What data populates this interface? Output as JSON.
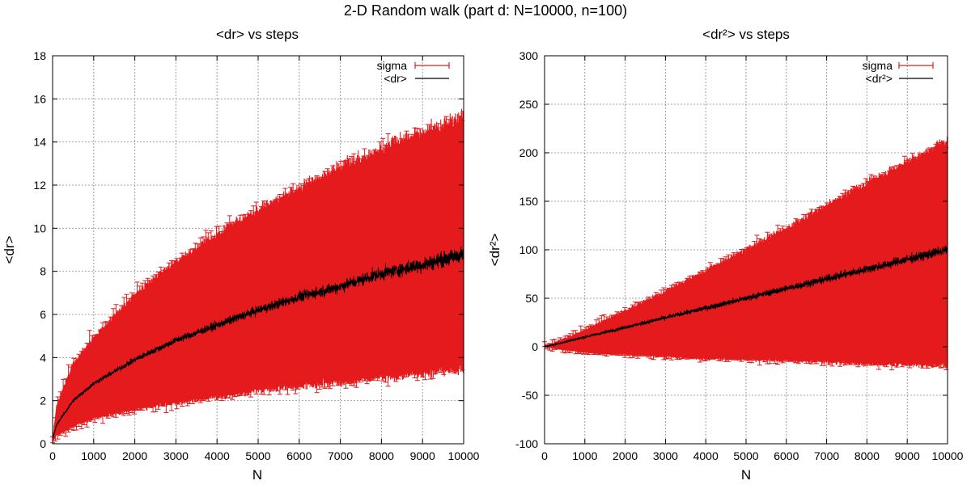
{
  "figure_title": "2-D Random walk (part d: N=10000, n=100)",
  "colors": {
    "sigma": "#e41a1c",
    "mean": "#000000",
    "grid": "#a0a0a0"
  },
  "chart_data": [
    {
      "type": "line",
      "title": "<dr> vs steps",
      "xlabel": "N",
      "ylabel": "<dr>",
      "xlim": [
        0,
        10000
      ],
      "ylim": [
        0,
        18
      ],
      "xticks": [
        "0",
        "1000",
        "2000",
        "3000",
        "4000",
        "5000",
        "6000",
        "7000",
        "8000",
        "9000",
        "10000"
      ],
      "yticks": [
        "0",
        "2",
        "4",
        "6",
        "8",
        "10",
        "12",
        "14",
        "16",
        "18"
      ],
      "grid": true,
      "legend_position": "top-right",
      "series": [
        {
          "name": "sigma",
          "style": "errorbars",
          "x": [
            0,
            100,
            500,
            1000,
            2000,
            3000,
            4000,
            5000,
            6000,
            7000,
            8000,
            9000,
            10000
          ],
          "upper": [
            0.2,
            1.8,
            3.7,
            4.9,
            6.9,
            8.4,
            9.7,
            10.8,
            11.8,
            12.8,
            13.6,
            14.4,
            15.1
          ],
          "lower": [
            0.1,
            0.4,
            0.8,
            1.2,
            1.6,
            1.9,
            2.2,
            2.5,
            2.7,
            2.9,
            3.1,
            3.3,
            3.5
          ]
        },
        {
          "name": "<dr>",
          "style": "line",
          "x": [
            0,
            100,
            500,
            1000,
            2000,
            3000,
            4000,
            5000,
            6000,
            7000,
            8000,
            9000,
            10000
          ],
          "y": [
            0.2,
            0.9,
            2.0,
            2.8,
            3.9,
            4.8,
            5.5,
            6.2,
            6.8,
            7.3,
            7.9,
            8.3,
            8.8
          ]
        }
      ]
    },
    {
      "type": "line",
      "title": "<dr²> vs steps",
      "xlabel": "N",
      "ylabel": "<dr²>",
      "xlim": [
        0,
        10000
      ],
      "ylim": [
        -100,
        300
      ],
      "xticks": [
        "0",
        "1000",
        "2000",
        "3000",
        "4000",
        "5000",
        "6000",
        "7000",
        "8000",
        "9000",
        "10000"
      ],
      "yticks": [
        "-100",
        "-50",
        "0",
        "50",
        "100",
        "150",
        "200",
        "250",
        "300"
      ],
      "grid": true,
      "legend_position": "top-right",
      "series": [
        {
          "name": "sigma",
          "style": "errorbars",
          "x": [
            0,
            1000,
            2000,
            3000,
            4000,
            5000,
            6000,
            7000,
            8000,
            9000,
            10000
          ],
          "upper": [
            0,
            17,
            37,
            57,
            78,
            100,
            121,
            145,
            168,
            190,
            212
          ],
          "lower": [
            0,
            -6,
            -8,
            -10,
            -12,
            -13,
            -14,
            -15,
            -17,
            -18,
            -19
          ]
        },
        {
          "name": "<dr²>",
          "style": "line",
          "x": [
            0,
            1000,
            2000,
            3000,
            4000,
            5000,
            6000,
            7000,
            8000,
            9000,
            10000
          ],
          "y": [
            0,
            10,
            20,
            30,
            40,
            50,
            60,
            70,
            80,
            90,
            100
          ]
        }
      ]
    }
  ]
}
